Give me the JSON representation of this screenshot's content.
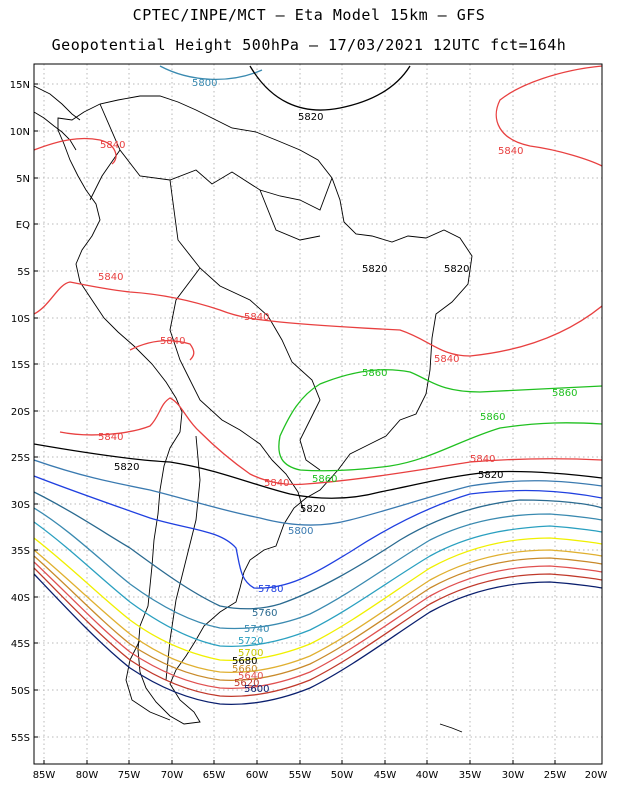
{
  "header": {
    "line1": "CPTEC/INPE/MCT –  Eta Model 15km – GFS",
    "line2": "Geopotential Height 500hPa – 17/03/2021 12UTC fct=164h"
  },
  "axes": {
    "lat_labels": [
      "15N",
      "10N",
      "5N",
      "EQ",
      "5S",
      "10S",
      "15S",
      "20S",
      "25S",
      "30S",
      "35S",
      "40S",
      "45S",
      "50S",
      "55S"
    ],
    "lon_labels": [
      "85W",
      "80W",
      "75W",
      "70W",
      "65W",
      "60W",
      "55W",
      "50W",
      "45W",
      "40W",
      "35W",
      "30W",
      "25W",
      "20W"
    ]
  },
  "colors": {
    "5580": "#0a1f6e",
    "5600": "#0a1f6e",
    "5620": "#c0392b",
    "5640": "#e05050",
    "5660": "#c88a2a",
    "5680": "#e0b030",
    "5700": "#f0f000",
    "5720": "#2aa0c0",
    "5740": "#3a8ab0",
    "5760": "#2a6a90",
    "5780": "#2040e0",
    "5800": "#3a7ab0",
    "5820": "#000000",
    "5840": "#e84040",
    "5860": "#20c020"
  },
  "contour_labels": [
    {
      "text": "5800",
      "id": "lab-5800-n"
    },
    {
      "text": "5820",
      "id": "lab-5820-n"
    },
    {
      "text": "5840",
      "id": "lab-5840-ne"
    },
    {
      "text": "5840",
      "id": "lab-5840-car"
    },
    {
      "text": "5820",
      "id": "lab-5820-ne1"
    },
    {
      "text": "5820",
      "id": "lab-5820-ne2"
    },
    {
      "text": "5840",
      "id": "lab-5840-w"
    },
    {
      "text": "5840",
      "id": "lab-5840-c"
    },
    {
      "text": "5840",
      "id": "lab-5840-w2"
    },
    {
      "text": "5840",
      "id": "lab-5840-e"
    },
    {
      "text": "5860",
      "id": "lab-5860-a"
    },
    {
      "text": "5860",
      "id": "lab-5860-b"
    },
    {
      "text": "5860",
      "id": "lab-5860-c"
    },
    {
      "text": "5860",
      "id": "lab-5860-d"
    },
    {
      "text": "5840",
      "id": "lab-5840-sw"
    },
    {
      "text": "5840",
      "id": "lab-5840-s"
    },
    {
      "text": "5840",
      "id": "lab-5840-se"
    },
    {
      "text": "5820",
      "id": "lab-5820-w"
    },
    {
      "text": "5820",
      "id": "lab-5820-e"
    },
    {
      "text": "5820",
      "id": "lab-5820-c"
    },
    {
      "text": "5800",
      "id": "lab-5800-c"
    },
    {
      "text": "5780",
      "id": "lab-5780"
    },
    {
      "text": "5760",
      "id": "lab-5760"
    },
    {
      "text": "5740",
      "id": "lab-5740"
    },
    {
      "text": "5720",
      "id": "lab-5720"
    },
    {
      "text": "5700",
      "id": "lab-5700"
    },
    {
      "text": "5680",
      "id": "lab-5680"
    },
    {
      "text": "5660",
      "id": "lab-5660"
    },
    {
      "text": "5640",
      "id": "lab-5640"
    },
    {
      "text": "5620",
      "id": "lab-5620"
    },
    {
      "text": "5600",
      "id": "lab-5600"
    }
  ]
}
